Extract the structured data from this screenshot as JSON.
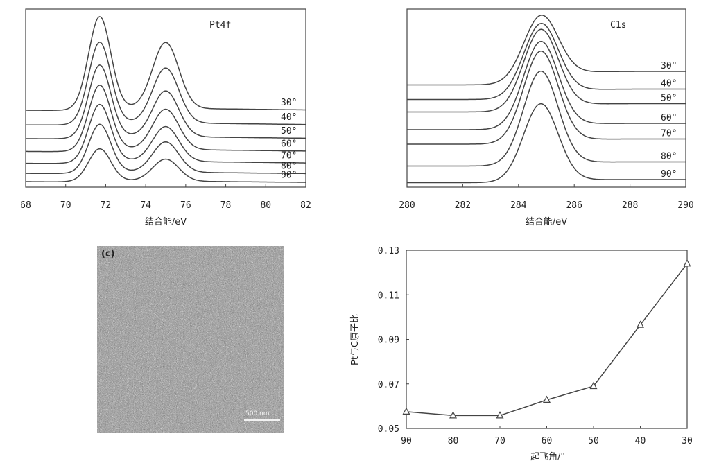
{
  "chart_data": [
    {
      "type": "line",
      "panel": "Pt4f spectra vs take-off angle",
      "annotation": "Pt4f",
      "xlabel": "结合能/eV",
      "ylabel": "",
      "xlim": [
        68,
        82
      ],
      "xticks": [
        "68",
        "70",
        "72",
        "74",
        "76",
        "78",
        "80",
        "82"
      ],
      "peaks": [
        71.7,
        75.0
      ],
      "series": [
        {
          "name": "30°",
          "offset": 0.78,
          "h1": 1.0,
          "h2": 0.72,
          "tail": 0.04
        },
        {
          "name": "40°",
          "offset": 0.62,
          "h1": 0.88,
          "h2": 0.6,
          "tail": 0.04
        },
        {
          "name": "50°",
          "offset": 0.47,
          "h1": 0.78,
          "h2": 0.5,
          "tail": 0.04
        },
        {
          "name": "60°",
          "offset": 0.33,
          "h1": 0.7,
          "h2": 0.44,
          "tail": 0.04
        },
        {
          "name": "70°",
          "offset": 0.2,
          "h1": 0.62,
          "h2": 0.38,
          "tail": 0.04
        },
        {
          "name": "80°",
          "offset": 0.09,
          "h1": 0.52,
          "h2": 0.33,
          "tail": 0.03
        },
        {
          "name": "90°",
          "offset": 0.0,
          "h1": 0.35,
          "h2": 0.24,
          "tail": 0.02
        }
      ]
    },
    {
      "type": "line",
      "panel": "C1s spectra vs take-off angle",
      "annotation": "C1s",
      "xlabel": "结合能/eV",
      "ylabel": "",
      "xlim": [
        280,
        290
      ],
      "xticks": [
        "280",
        "282",
        "284",
        "286",
        "288",
        "290"
      ],
      "peaks": [
        284.8
      ],
      "series": [
        {
          "name": "30°",
          "offset": 0.94,
          "h1": 0.63,
          "tail": 0.12
        },
        {
          "name": "40°",
          "offset": 0.8,
          "h1": 0.7,
          "tail": 0.09
        },
        {
          "name": "50°",
          "offset": 0.68,
          "h1": 0.77,
          "tail": 0.07
        },
        {
          "name": "60°",
          "offset": 0.51,
          "h1": 0.83,
          "tail": 0.05
        },
        {
          "name": "70°",
          "offset": 0.37,
          "h1": 0.88,
          "tail": 0.04
        },
        {
          "name": "80°",
          "offset": 0.16,
          "h1": 0.9,
          "tail": 0.03
        },
        {
          "name": "90°",
          "offset": 0.0,
          "h1": 0.75,
          "tail": 0.02
        }
      ]
    },
    {
      "type": "line",
      "panel": "Pt/C atomic ratio vs take-off angle",
      "xlabel": "起飞角/°",
      "ylabel": "Pt与C原子比",
      "xlim": [
        90,
        30
      ],
      "ylim": [
        0.05,
        0.13
      ],
      "xticks": [
        "90",
        "80",
        "70",
        "60",
        "50",
        "40",
        "30"
      ],
      "yticks": [
        "0.05",
        "0.07",
        "0.09",
        "0.11",
        "0.13"
      ],
      "marker": "triangle",
      "x": [
        90,
        80,
        70,
        60,
        50,
        40,
        30
      ],
      "y": [
        0.0575,
        0.0558,
        0.0558,
        0.0628,
        0.069,
        0.0965,
        0.124
      ]
    }
  ],
  "micrograph": {
    "label": "(c)",
    "scale_bar": "500 nm"
  }
}
